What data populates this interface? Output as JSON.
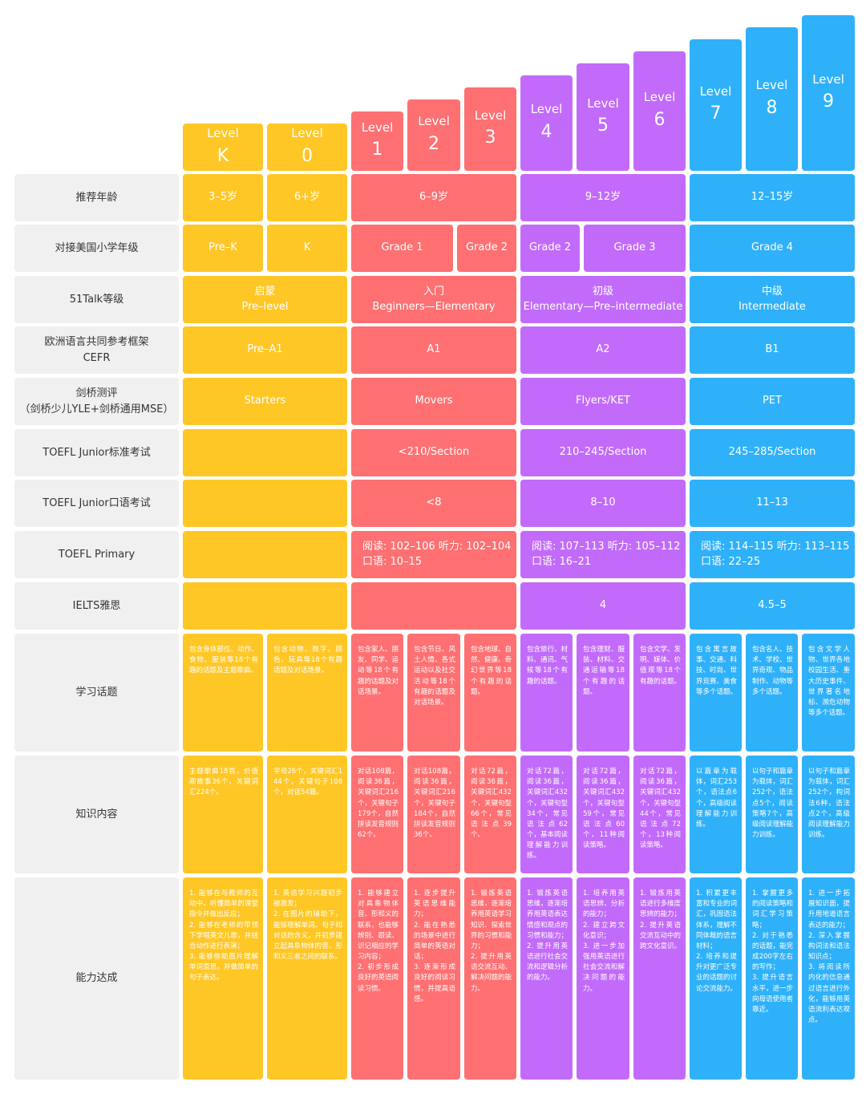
{
  "colors": {
    "yellow": "#ffc726",
    "red": "#fe7072",
    "purple": "#c26bfa",
    "blue": "#2fb1fa",
    "label_bg": "#f0f0f0"
  },
  "level_word": "Level",
  "levels": [
    "K",
    "0",
    "1",
    "2",
    "3",
    "4",
    "5",
    "6",
    "7",
    "8",
    "9"
  ],
  "row_labels": {
    "age": "推荐年龄",
    "grade": "对接美国小学年级",
    "talk": "51Talk等级",
    "cefr": "欧洲语言共同参考框架\nCEFR",
    "cambridge": "剑桥测评\n（剑桥少儿YLE+剑桥通用MSE）",
    "tj_std": "TOEFL Junior标准考试",
    "tj_oral": "TOEFL Junior口语考试",
    "tp": "TOEFL Primary",
    "ielts": "IELTS雅思",
    "topics": "学习话题",
    "knowledge": "知识内容",
    "ability": "能力达成"
  },
  "age": [
    "3–5岁",
    "6+岁",
    "6–9岁",
    "9–12岁",
    "12–15岁"
  ],
  "grade": [
    "Pre–K",
    "K",
    "Grade 1",
    "Grade 2",
    "Grade 2",
    "Grade 3",
    "Grade 4"
  ],
  "talk": [
    {
      "cn": "启蒙",
      "en": "Pre–level"
    },
    {
      "cn": "入门",
      "en": "Beginners—Elementary"
    },
    {
      "cn": "初级",
      "en": "Elementary—Pre–intermediate"
    },
    {
      "cn": "中级",
      "en": "Intermediate"
    }
  ],
  "cefr": [
    "Pre–A1",
    "A1",
    "A2",
    "B1"
  ],
  "cambridge": [
    "Starters",
    "Movers",
    "Flyers/KET",
    "PET"
  ],
  "tj_std": [
    "",
    "<210/Section",
    "210–245/Section",
    "245–285/Section"
  ],
  "tj_oral": [
    "",
    "<8",
    "8–10",
    "11–13"
  ],
  "tp": [
    "",
    "阅读: 102–106   听力: 102–104\n口语: 10–15",
    "阅读: 107–113   听力: 105–112\n口语: 16–21",
    "阅读: 114–115   听力: 113–115\n口语: 22–25"
  ],
  "ielts": [
    "",
    "",
    "4",
    "4.5–5"
  ],
  "topics": [
    "包含身体部位、动作、食物、服装等18个有趣的话题及主题歌曲。",
    "包含动物、数字、颜色、玩具等18个有趣话题及对话场景。",
    "包含家人、朋友、同学、运动等18个有趣的话题及对话场景。",
    "包含节日、风土人情、各式运动以及社交活动等18个有趣的话题及对话场景。",
    "包含地球、自然、健康、奇幻世界等18个有趣的话题。",
    "包含旅行、材料、通讯、气候等18个有趣的话题。",
    "包含理财、服装、材料、交通运输等18个有趣的话题。",
    "包含文学、发明、媒体、价值观等18个有趣的话题。",
    "包含寓言故事、交通、科技、时尚、世界竞赛、美食等多个话题。",
    "包含名人、技术、学校、世界奇观、物品制作、动物等多个话题。",
    "包含文学人物、世界各地校园生活、重大历史事件、世界著名地标、濒危动物等多个话题。"
  ],
  "knowledge": [
    "主题歌曲18首，价值观故事36个，关键词汇224个。",
    "字母26个，关键词汇144个，关键句子108个，对话54篇。",
    "对话108篇，阅读36篇，关键词汇216个，关键句子179个，自然拼读发音规则62个。",
    "对话108篇，阅读36篇，关键词汇216个，关键句子184个，自然拼读发音规则36个。",
    "对话72篇，阅读36篇，关键词汇432个，关键句型66个，常见语法点39个。",
    "对话72篇，阅读36篇，关键词汇432个，关键句型34个，常见语法点62个，基本阅读理解能力训练。",
    "对话72篇，阅读36篇，关键词汇432个，关键句型59个，常见语法点60个，11种阅读策略。",
    "对话72篇，阅读36篇，关键词汇432个，关键句型44个，常见语法点72个，13种阅读策略。",
    "以篇章为载体，词汇253个，语法点6个，高级阅读理解能力训练。",
    "以句子和篇章为载体，词汇252个，语法点5个，阅读策略7个，高级阅读理解能力训练。",
    "以句子和篇章为载体，词汇252个，构词法6种，语法点2个，高级阅读理解能力训练。"
  ],
  "ability": [
    "1. 能够在与教师的互动中，听懂简单的课堂指令并做出反应；\n2. 能够在老师的带领下学唱英文儿歌，并结合动作进行表演；\n3. 能够借助图片理解单词意思，并做简单的句子表达。",
    "1. 英语学习兴趣初步被激发；\n2. 在图片的辅助下，能够理解单词、句子和对话的含义，并初步建立起具象物体的音、形和义三者之间的联系。",
    "1. 能够建立对具象物体音、形和义的联系，也能够辨别、跟读、识记相应的学习内容；\n2. 初步形成良好的英语阅读习惯。",
    "1. 逐步提升英语思维能力；\n2. 能在熟悉的场景中进行简单的英语对话；\n3. 逐渐形成良好的阅读习惯，并提高语感。",
    "1. 锻炼英语思维，逐渐培养用英语学习知识、探索世界的习惯和能力；\n2. 提升用英语交流互动、解决问题的能力。",
    "1. 锻炼英语思维，逐渐培养用英语表达情感和观点的习惯和能力；\n2. 提升用英语进行社会交流和逻辑分析的能力。",
    "1. 培养用英语思辨、分析的能力；\n2. 建立跨文化意识；\n3. 进一步加强用英语进行社会交流和解决问题的能力。",
    "1. 锻炼用英语进行多维度思辨的能力；\n2. 提升英语交流互动中的跨文化意识。",
    "1. 积累更丰富和专业的词汇，巩固语法体系，理解不同体裁的语言材料；\n2. 培养和提升对更广泛专业的话题的讨论交流能力。",
    "1. 掌握更多的阅读策略和词汇学习策略；\n2. 对于熟悉的话题，能完成200字左右的写作；\n3. 提升语言水平，进一步向母语使用者靠近。",
    "1. 进一步拓展知识面，提升用地道语言表达的能力；\n2. 深入掌握构词法和语法知识点；\n3. 将阅读所内化的信息通过语言进行外化，能够用英语流利表达观点。"
  ]
}
